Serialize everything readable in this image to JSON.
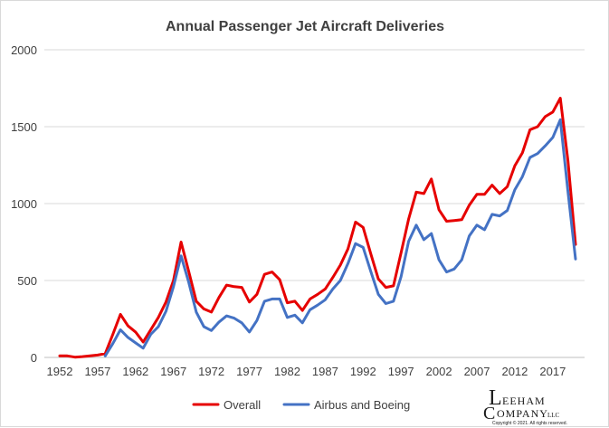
{
  "chart_data": {
    "type": "line",
    "title": "Annual Passenger Jet Aircraft Deliveries",
    "xlabel": "",
    "ylabel": "",
    "xlim": [
      1952,
      2020
    ],
    "ylim": [
      0,
      2000
    ],
    "x_ticks": [
      "1952",
      "1957",
      "1962",
      "1967",
      "1972",
      "1977",
      "1982",
      "1987",
      "1992",
      "1997",
      "2002",
      "2007",
      "2012",
      "2017"
    ],
    "y_ticks": [
      "0",
      "500",
      "1000",
      "1500",
      "2000"
    ],
    "grid": "horizontal",
    "legend_position": "bottom",
    "series": [
      {
        "name": "Overall",
        "color": "#e60000",
        "x": [
          1952,
          1953,
          1954,
          1955,
          1956,
          1957,
          1958,
          1959,
          1960,
          1961,
          1962,
          1963,
          1964,
          1965,
          1966,
          1967,
          1968,
          1969,
          1970,
          1971,
          1972,
          1973,
          1974,
          1975,
          1976,
          1977,
          1978,
          1979,
          1980,
          1981,
          1982,
          1983,
          1984,
          1985,
          1986,
          1987,
          1988,
          1989,
          1990,
          1991,
          1992,
          1993,
          1994,
          1995,
          1996,
          1997,
          1998,
          1999,
          2000,
          2001,
          2002,
          2003,
          2004,
          2005,
          2006,
          2007,
          2008,
          2009,
          2010,
          2011,
          2012,
          2013,
          2014,
          2015,
          2016,
          2017,
          2018,
          2019,
          2020
        ],
        "values": [
          10,
          10,
          2,
          5,
          10,
          15,
          25,
          150,
          280,
          205,
          165,
          100,
          180,
          260,
          360,
          500,
          750,
          560,
          365,
          315,
          295,
          390,
          470,
          460,
          455,
          360,
          410,
          540,
          555,
          505,
          355,
          365,
          305,
          380,
          410,
          445,
          520,
          600,
          705,
          880,
          845,
          675,
          510,
          455,
          465,
          680,
          900,
          1075,
          1065,
          1160,
          960,
          885,
          890,
          895,
          990,
          1060,
          1060,
          1120,
          1065,
          1110,
          1245,
          1330,
          1480,
          1500,
          1565,
          1595,
          1685,
          1280,
          735
        ]
      },
      {
        "name": "Airbus and Boeing",
        "color": "#4472c4",
        "x": [
          1958,
          1959,
          1960,
          1961,
          1962,
          1963,
          1964,
          1965,
          1966,
          1967,
          1968,
          1969,
          1970,
          1971,
          1972,
          1973,
          1974,
          1975,
          1976,
          1977,
          1978,
          1979,
          1980,
          1981,
          1982,
          1983,
          1984,
          1985,
          1986,
          1987,
          1988,
          1989,
          1990,
          1991,
          1992,
          1993,
          1994,
          1995,
          1996,
          1997,
          1998,
          1999,
          2000,
          2001,
          2002,
          2003,
          2004,
          2005,
          2006,
          2007,
          2008,
          2009,
          2010,
          2011,
          2012,
          2013,
          2014,
          2015,
          2016,
          2017,
          2018,
          2019,
          2020
        ],
        "values": [
          10,
          90,
          180,
          130,
          95,
          60,
          150,
          200,
          300,
          460,
          660,
          490,
          295,
          200,
          175,
          230,
          270,
          255,
          225,
          165,
          240,
          365,
          380,
          380,
          260,
          275,
          225,
          310,
          340,
          375,
          445,
          500,
          610,
          740,
          715,
          560,
          410,
          350,
          365,
          525,
          755,
          860,
          765,
          805,
          635,
          555,
          575,
          635,
          790,
          860,
          830,
          930,
          920,
          955,
          1090,
          1175,
          1300,
          1325,
          1375,
          1430,
          1545,
          1080,
          640
        ]
      }
    ]
  },
  "logo": {
    "line1": "LEEHAM",
    "line2": "COMPANY",
    "suffix": "LLC",
    "copyright": "Copyright © 2021. All rights reserved."
  }
}
